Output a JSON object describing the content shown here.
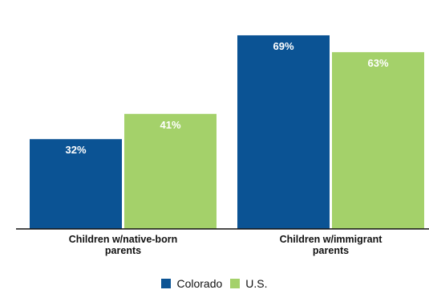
{
  "colors": {
    "colorado": "#0b5394",
    "us": "#a4d16a",
    "axis": "#111111",
    "value_text": "#ffffff"
  },
  "chart_data": {
    "type": "bar",
    "categories": [
      [
        "Children w/native-born",
        "parents"
      ],
      [
        "Children w/immigrant",
        "parents"
      ]
    ],
    "series": [
      {
        "name": "Colorado",
        "values": [
          32,
          69
        ],
        "labels": [
          "32%",
          "69%"
        ]
      },
      {
        "name": "U.S.",
        "values": [
          41,
          63
        ],
        "labels": [
          "41%",
          "63%"
        ]
      }
    ],
    "ylim": [
      0,
      73
    ],
    "grid": false,
    "legend_position": "bottom-center",
    "title": "",
    "xlabel": "",
    "ylabel": ""
  },
  "legend": {
    "colorado": "Colorado",
    "us": "U.S."
  }
}
